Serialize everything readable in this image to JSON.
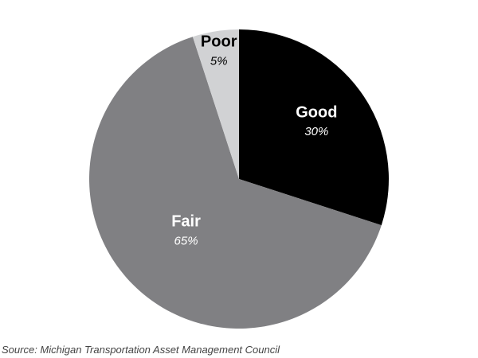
{
  "chart_data": {
    "type": "pie",
    "categories": [
      "Good",
      "Fair",
      "Poor"
    ],
    "values": [
      30,
      65,
      5
    ],
    "value_labels": [
      "30%",
      "65%",
      "5%"
    ],
    "colors": [
      "#000000",
      "#808083",
      "#d1d2d4"
    ],
    "source": "Source: Michigan Transportation Asset Management Council"
  }
}
